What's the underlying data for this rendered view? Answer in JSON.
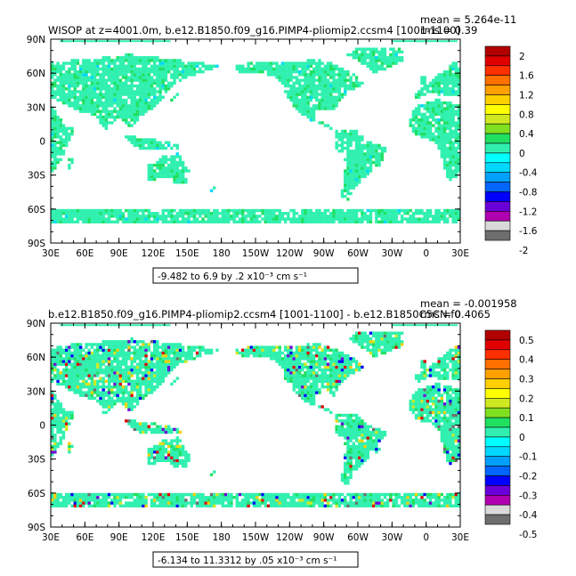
{
  "chart_data": [
    {
      "type": "heatmap",
      "title": "WISOP at z=4001.0m, b.e12.B1850.f09_g16.PIMP4-pliomip2.ccsm4 [1001-1100]",
      "stat_mean": "mean = 5.264e-11",
      "stat_rms": "rms = 0.39",
      "range_note": "-9.482 to 6.9 by .2 x10⁻³ cm s⁻¹",
      "x_ticks": [
        "30E",
        "60E",
        "90E",
        "120E",
        "150E",
        "180",
        "150W",
        "120W",
        "90W",
        "60W",
        "30W",
        "0",
        "30E"
      ],
      "y_ticks": [
        "90N",
        "60N",
        "30N",
        "0",
        "30S",
        "60S",
        "90S"
      ],
      "colorbar_labels": [
        "2",
        "1.6",
        "1.2",
        "0.8",
        "0.4",
        "0",
        "-0.4",
        "-0.8",
        "-1.2",
        "-1.6",
        "-2"
      ],
      "colorbar_range": [
        -2,
        2
      ]
    },
    {
      "type": "heatmap",
      "title": "b.e12.B1850.f09_g16.PIMP4-pliomip2.ccsm4 [1001-1100] - b.e12.B1850C5CN.f0",
      "stat_mean": "mean = -0.001958",
      "stat_rms": "rms = 0.4065",
      "range_note": "-6.134 to 11.3312 by .05 x10⁻³ cm s⁻¹",
      "x_ticks": [
        "30E",
        "60E",
        "90E",
        "120E",
        "150E",
        "180",
        "150W",
        "120W",
        "90W",
        "60W",
        "30W",
        "0",
        "30E"
      ],
      "y_ticks": [
        "90N",
        "60N",
        "30N",
        "0",
        "30S",
        "60S",
        "90S"
      ],
      "colorbar_labels": [
        "0.5",
        "0.4",
        "0.3",
        "0.2",
        "0.1",
        "0",
        "-0.1",
        "-0.2",
        "-0.3",
        "-0.4",
        "-0.5"
      ],
      "colorbar_range": [
        -0.5,
        0.5
      ]
    }
  ],
  "colors": {
    "palette": [
      "#6e6e6e",
      "#d9d9d9",
      "#b000b0",
      "#6a00d8",
      "#0000ff",
      "#0066ff",
      "#00a0ff",
      "#00d8ff",
      "#00ffff",
      "#30f0b0",
      "#20e060",
      "#80e020",
      "#d0e820",
      "#ffff00",
      "#ffd000",
      "#ffa000",
      "#ff7000",
      "#ff3000",
      "#e00000",
      "#b00000"
    ],
    "land_main": "#30f0b0",
    "land_green": "#20e060"
  }
}
